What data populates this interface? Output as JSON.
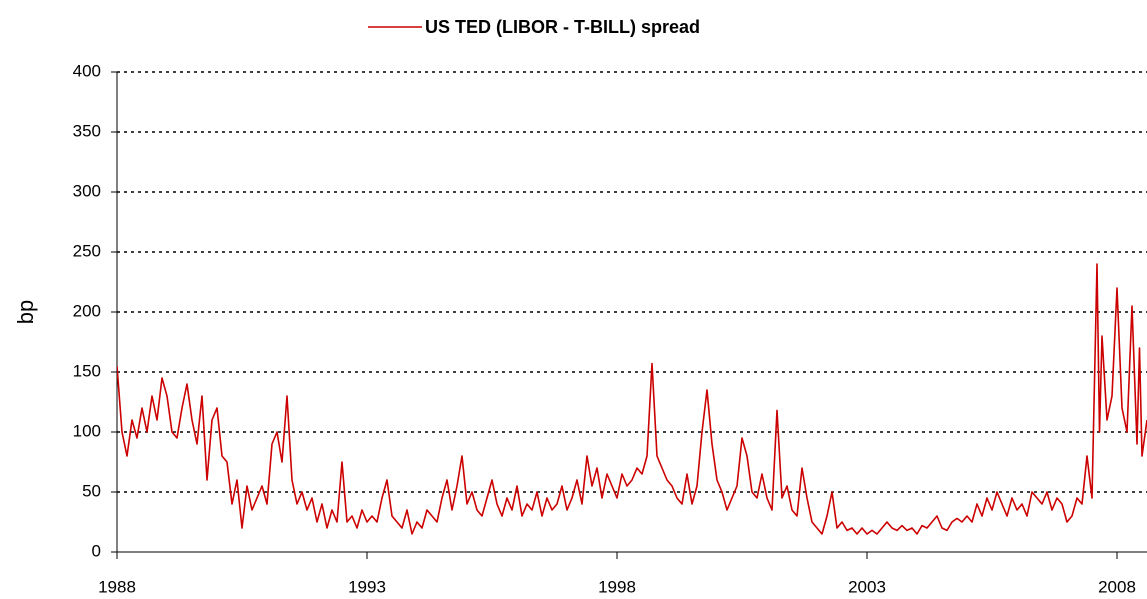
{
  "chart_data": {
    "type": "line",
    "x": [
      1988.0,
      1988.1,
      1988.2,
      1988.3,
      1988.4,
      1988.5,
      1988.6,
      1988.7,
      1988.8,
      1988.9,
      1989.0,
      1989.1,
      1989.2,
      1989.3,
      1989.4,
      1989.5,
      1989.6,
      1989.7,
      1989.8,
      1989.9,
      1990.0,
      1990.1,
      1990.2,
      1990.3,
      1990.4,
      1990.5,
      1990.6,
      1990.7,
      1990.8,
      1990.9,
      1991.0,
      1991.1,
      1991.2,
      1991.3,
      1991.4,
      1991.5,
      1991.6,
      1991.7,
      1991.8,
      1991.9,
      1992.0,
      1992.1,
      1992.2,
      1992.3,
      1992.4,
      1992.5,
      1992.6,
      1992.7,
      1992.8,
      1992.9,
      1993.0,
      1993.1,
      1993.2,
      1993.3,
      1993.4,
      1993.5,
      1993.6,
      1993.7,
      1993.8,
      1993.9,
      1994.0,
      1994.1,
      1994.2,
      1994.3,
      1994.4,
      1994.5,
      1994.6,
      1994.7,
      1994.8,
      1994.9,
      1995.0,
      1995.1,
      1995.2,
      1995.3,
      1995.4,
      1995.5,
      1995.6,
      1995.7,
      1995.8,
      1995.9,
      1996.0,
      1996.1,
      1996.2,
      1996.3,
      1996.4,
      1996.5,
      1996.6,
      1996.7,
      1996.8,
      1996.9,
      1997.0,
      1997.1,
      1997.2,
      1997.3,
      1997.4,
      1997.5,
      1997.6,
      1997.7,
      1997.8,
      1997.9,
      1998.0,
      1998.1,
      1998.2,
      1998.3,
      1998.4,
      1998.5,
      1998.6,
      1998.7,
      1998.8,
      1998.9,
      1999.0,
      1999.1,
      1999.2,
      1999.3,
      1999.4,
      1999.5,
      1999.6,
      1999.7,
      1999.8,
      1999.9,
      2000.0,
      2000.1,
      2000.2,
      2000.3,
      2000.4,
      2000.5,
      2000.6,
      2000.7,
      2000.8,
      2000.9,
      2001.0,
      2001.1,
      2001.2,
      2001.3,
      2001.4,
      2001.5,
      2001.6,
      2001.7,
      2001.8,
      2001.9,
      2002.0,
      2002.1,
      2002.2,
      2002.3,
      2002.4,
      2002.5,
      2002.6,
      2002.7,
      2002.8,
      2002.9,
      2003.0,
      2003.1,
      2003.2,
      2003.3,
      2003.4,
      2003.5,
      2003.6,
      2003.7,
      2003.8,
      2003.9,
      2004.0,
      2004.1,
      2004.2,
      2004.3,
      2004.4,
      2004.5,
      2004.6,
      2004.7,
      2004.8,
      2004.9,
      2005.0,
      2005.1,
      2005.2,
      2005.3,
      2005.4,
      2005.5,
      2005.6,
      2005.7,
      2005.8,
      2005.9,
      2006.0,
      2006.1,
      2006.2,
      2006.3,
      2006.4,
      2006.5,
      2006.6,
      2006.7,
      2006.8,
      2006.9,
      2007.0,
      2007.1,
      2007.2,
      2007.3,
      2007.4,
      2007.5,
      2007.6,
      2007.65,
      2007.7,
      2007.8,
      2007.9,
      2008.0,
      2008.1,
      2008.2,
      2008.3,
      2008.4,
      2008.45,
      2008.5,
      2008.6
    ],
    "series": [
      {
        "name": "US TED (LIBOR - T-BILL) spread",
        "color": "#cc0000",
        "values": [
          155,
          100,
          80,
          110,
          95,
          120,
          100,
          130,
          110,
          145,
          130,
          100,
          95,
          120,
          140,
          110,
          90,
          130,
          60,
          110,
          120,
          80,
          75,
          40,
          60,
          20,
          55,
          35,
          45,
          55,
          40,
          90,
          100,
          75,
          130,
          60,
          40,
          50,
          35,
          45,
          25,
          40,
          20,
          35,
          25,
          75,
          25,
          30,
          20,
          35,
          25,
          30,
          25,
          45,
          60,
          30,
          25,
          20,
          35,
          15,
          25,
          20,
          35,
          30,
          25,
          45,
          60,
          35,
          55,
          80,
          40,
          50,
          35,
          30,
          45,
          60,
          40,
          30,
          45,
          35,
          55,
          30,
          40,
          35,
          50,
          30,
          45,
          35,
          40,
          55,
          35,
          45,
          60,
          40,
          80,
          55,
          70,
          45,
          65,
          55,
          45,
          65,
          55,
          60,
          70,
          65,
          80,
          157,
          80,
          70,
          60,
          55,
          45,
          40,
          65,
          40,
          55,
          100,
          135,
          90,
          60,
          50,
          35,
          45,
          55,
          95,
          80,
          50,
          45,
          65,
          45,
          35,
          118,
          45,
          55,
          35,
          30,
          70,
          45,
          25,
          20,
          15,
          30,
          50,
          20,
          25,
          18,
          20,
          15,
          20,
          15,
          18,
          15,
          20,
          25,
          20,
          18,
          22,
          18,
          20,
          15,
          22,
          20,
          25,
          30,
          20,
          18,
          25,
          28,
          25,
          30,
          25,
          40,
          30,
          45,
          35,
          50,
          40,
          30,
          45,
          35,
          40,
          30,
          50,
          45,
          40,
          50,
          35,
          45,
          40,
          25,
          30,
          45,
          40,
          80,
          45,
          240,
          100,
          180,
          110,
          130,
          220,
          120,
          100,
          205,
          90,
          170,
          80,
          110
        ]
      }
    ],
    "xlim": [
      1988,
      2008.6
    ],
    "xticks": [
      1988,
      1993,
      1998,
      2003,
      2008
    ],
    "ylim": [
      0,
      400
    ],
    "yticks": [
      0,
      50,
      100,
      150,
      200,
      250,
      300,
      350,
      400
    ],
    "ylabel": "bp",
    "grid": true,
    "legend": "top"
  }
}
